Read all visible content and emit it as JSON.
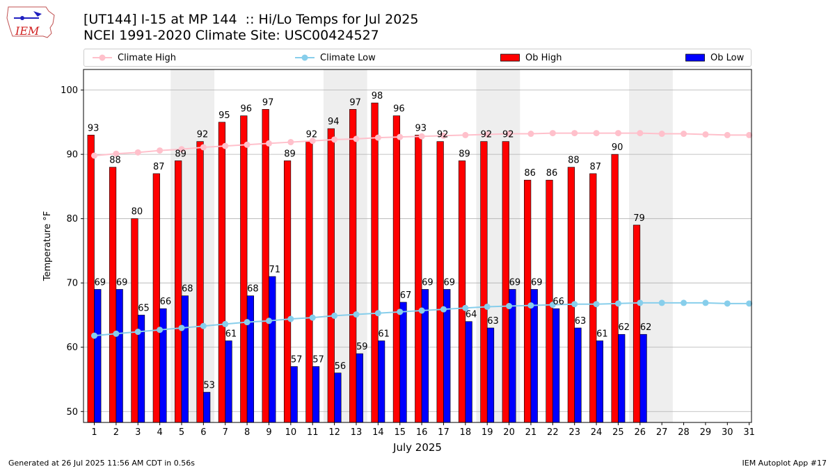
{
  "title_line1": "[UT144] I-15 at MP 144  :: Hi/Lo Temps for Jul 2025",
  "title_line2": "NCEI 1991-2020 Climate Site: USC00424527",
  "logo_text": "IEM",
  "footer_left": "Generated at 26 Jul 2025 11:56 AM CDT in 0.56s",
  "footer_right": "IEM Autoplot App #17",
  "colors": {
    "climate_high": "#ffc0cb",
    "climate_low": "#87ceeb",
    "ob_high": "#ff0000",
    "ob_low": "#0000ff",
    "weekend_shade": "#eeeeee",
    "grid": "#b0b0b0"
  },
  "chart_data": {
    "type": "bar",
    "xlabel": "July 2025",
    "ylabel": "Temperature °F",
    "ylim": [
      48.3,
      103.2
    ],
    "yticks": [
      50,
      60,
      70,
      80,
      90,
      100
    ],
    "grid": "horizontal",
    "legend_position": "top",
    "categories": [
      "1",
      "2",
      "3",
      "4",
      "5",
      "6",
      "7",
      "8",
      "9",
      "10",
      "11",
      "12",
      "13",
      "14",
      "15",
      "16",
      "17",
      "18",
      "19",
      "20",
      "21",
      "22",
      "23",
      "24",
      "25",
      "26",
      "27",
      "28",
      "29",
      "30",
      "31"
    ],
    "shaded_days": [
      [
        5,
        6
      ],
      [
        12,
        13
      ],
      [
        19,
        20
      ],
      [
        26,
        27
      ]
    ],
    "series": [
      {
        "name": "Climate High",
        "kind": "line",
        "values": [
          89.8,
          90.1,
          90.3,
          90.6,
          90.8,
          91.1,
          91.3,
          91.5,
          91.7,
          91.9,
          92.1,
          92.3,
          92.4,
          92.6,
          92.7,
          92.8,
          92.9,
          93.0,
          93.1,
          93.2,
          93.2,
          93.3,
          93.3,
          93.3,
          93.3,
          93.3,
          93.2,
          93.2,
          93.1,
          93.0,
          93.0
        ]
      },
      {
        "name": "Climate Low",
        "kind": "line",
        "values": [
          61.8,
          62.1,
          62.4,
          62.7,
          63.0,
          63.3,
          63.6,
          63.9,
          64.1,
          64.4,
          64.6,
          64.9,
          65.1,
          65.3,
          65.5,
          65.7,
          65.9,
          66.1,
          66.3,
          66.4,
          66.5,
          66.6,
          66.7,
          66.7,
          66.8,
          66.9,
          66.9,
          66.9,
          66.9,
          66.8,
          66.8
        ]
      },
      {
        "name": "Ob High",
        "kind": "bar",
        "values": [
          93,
          88,
          80,
          87,
          89,
          92,
          95,
          96,
          97,
          89,
          92,
          94,
          97,
          98,
          96,
          93,
          92,
          89,
          92,
          92,
          86,
          86,
          88,
          87,
          90,
          79,
          null,
          null,
          null,
          null,
          null
        ],
        "labels": [
          "93",
          "88",
          "80",
          "87",
          "89",
          "92",
          "95",
          "96",
          "97",
          "89",
          "92",
          "94",
          "97",
          "98",
          "96",
          "93",
          "92",
          "89",
          "92",
          "92",
          "86",
          "86",
          "88",
          "87",
          "90",
          "79",
          "",
          "",
          "",
          "",
          ""
        ]
      },
      {
        "name": "Ob Low",
        "kind": "bar",
        "values": [
          69,
          69,
          65,
          66,
          68,
          53,
          61,
          68,
          71,
          57,
          57,
          56,
          59,
          61,
          67,
          69,
          69,
          64,
          63,
          69,
          69,
          66,
          63,
          61,
          62,
          62,
          null,
          null,
          null,
          null,
          null
        ],
        "labels": [
          "69",
          "69",
          "65",
          "66",
          "68",
          "53",
          "61",
          "68",
          "71",
          "57",
          "57",
          "56",
          "59",
          "61",
          "67",
          "69",
          "69",
          "64",
          "63",
          "69",
          "69",
          "66",
          "63",
          "61",
          "62",
          "62",
          "",
          "",
          "",
          "",
          ""
        ]
      }
    ]
  }
}
